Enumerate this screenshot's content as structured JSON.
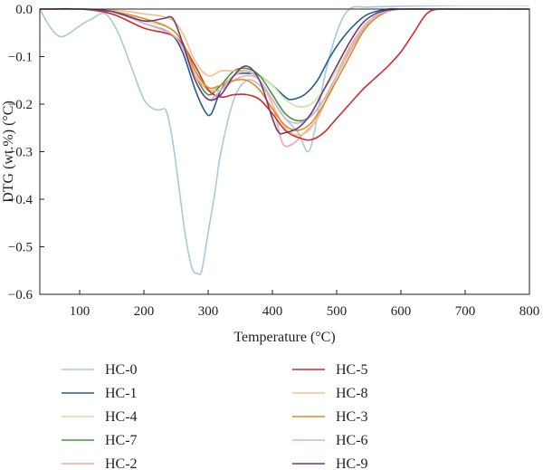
{
  "chart_data": {
    "type": "line",
    "xlabel": "Temperature (°C)",
    "ylabel": "DTG (wt.%) (°C)",
    "xlim": [
      38,
      800
    ],
    "ylim": [
      -0.6,
      0.0
    ],
    "xticks": [
      100,
      200,
      300,
      400,
      500,
      600,
      700,
      800
    ],
    "yticks": [
      0.0,
      -0.1,
      -0.2,
      -0.3,
      -0.4,
      -0.5,
      -0.6
    ],
    "ytick_labels": [
      "0.0",
      "−0.1",
      "−0.2",
      "−0.3",
      "−0.4",
      "−0.5",
      "−0.6"
    ],
    "grid": false,
    "legend_position": "bottom, two columns",
    "series": [
      {
        "name": "HC-0",
        "color": "#a8c8e0",
        "x": [
          38,
          55,
          70,
          85,
          100,
          120,
          140,
          160,
          180,
          200,
          215,
          225,
          235,
          245,
          255,
          265,
          275,
          283,
          290,
          300,
          310,
          320,
          340,
          360,
          380,
          400,
          420,
          440,
          455,
          465,
          480,
          500,
          520,
          550,
          600,
          650,
          700,
          800
        ],
        "y": [
          0,
          -0.04,
          -0.058,
          -0.05,
          -0.035,
          -0.02,
          -0.01,
          -0.05,
          -0.12,
          -0.19,
          -0.21,
          -0.212,
          -0.215,
          -0.28,
          -0.38,
          -0.48,
          -0.545,
          -0.556,
          -0.55,
          -0.47,
          -0.39,
          -0.3,
          -0.19,
          -0.15,
          -0.16,
          -0.19,
          -0.23,
          -0.26,
          -0.3,
          -0.26,
          -0.15,
          -0.05,
          0,
          0.004,
          0.006,
          0.007,
          0.008,
          0.008
        ]
      },
      {
        "name": "HC-1",
        "color": "#1f5f8f",
        "x": [
          38,
          100,
          150,
          200,
          240,
          260,
          280,
          295,
          305,
          320,
          340,
          360,
          380,
          400,
          420,
          430,
          450,
          470,
          490,
          510,
          530,
          550,
          580,
          600,
          650,
          700,
          800
        ],
        "y": [
          0,
          0,
          -0.005,
          -0.03,
          -0.05,
          -0.09,
          -0.17,
          -0.215,
          -0.22,
          -0.17,
          -0.14,
          -0.135,
          -0.14,
          -0.16,
          -0.185,
          -0.19,
          -0.18,
          -0.15,
          -0.1,
          -0.06,
          -0.03,
          -0.01,
          0,
          0,
          0,
          0,
          0
        ]
      },
      {
        "name": "HC-4",
        "color": "#c8e6a0",
        "x": [
          38,
          100,
          150,
          200,
          240,
          260,
          280,
          300,
          320,
          340,
          360,
          380,
          400,
          420,
          440,
          460,
          480,
          500,
          520,
          540,
          560,
          580,
          600,
          650,
          700,
          800
        ],
        "y": [
          0,
          0,
          -0.005,
          -0.025,
          -0.04,
          -0.07,
          -0.13,
          -0.17,
          -0.16,
          -0.14,
          -0.13,
          -0.14,
          -0.16,
          -0.19,
          -0.205,
          -0.2,
          -0.17,
          -0.13,
          -0.08,
          -0.04,
          -0.015,
          -0.005,
          0,
          0,
          0,
          0
        ]
      },
      {
        "name": "HC-7",
        "color": "#3a9a3a",
        "x": [
          38,
          100,
          150,
          200,
          240,
          260,
          280,
          300,
          320,
          340,
          360,
          380,
          400,
          420,
          440,
          460,
          480,
          500,
          520,
          540,
          560,
          580,
          600,
          650,
          700,
          800
        ],
        "y": [
          0,
          0,
          -0.005,
          -0.03,
          -0.05,
          -0.08,
          -0.14,
          -0.18,
          -0.16,
          -0.13,
          -0.125,
          -0.14,
          -0.18,
          -0.22,
          -0.235,
          -0.225,
          -0.19,
          -0.14,
          -0.09,
          -0.045,
          -0.015,
          -0.005,
          0,
          0,
          0,
          0
        ]
      },
      {
        "name": "HC-2",
        "color": "#f4a6a0",
        "x": [
          38,
          100,
          150,
          200,
          240,
          260,
          280,
          300,
          320,
          340,
          360,
          380,
          400,
          415,
          430,
          450,
          470,
          490,
          510,
          530,
          550,
          580,
          600,
          650,
          700,
          800
        ],
        "y": [
          0,
          0,
          -0.005,
          -0.03,
          -0.05,
          -0.08,
          -0.14,
          -0.17,
          -0.17,
          -0.15,
          -0.14,
          -0.15,
          -0.2,
          -0.28,
          -0.285,
          -0.26,
          -0.23,
          -0.17,
          -0.11,
          -0.06,
          -0.025,
          -0.005,
          0,
          0,
          0,
          0
        ]
      },
      {
        "name": "HC-5",
        "color": "#d42a2a",
        "x": [
          38,
          100,
          150,
          200,
          250,
          280,
          300,
          320,
          340,
          360,
          380,
          400,
          420,
          440,
          460,
          480,
          500,
          520,
          540,
          560,
          580,
          600,
          620,
          640,
          660,
          700,
          800
        ],
        "y": [
          0,
          0,
          -0.01,
          -0.04,
          -0.06,
          -0.12,
          -0.17,
          -0.185,
          -0.18,
          -0.18,
          -0.19,
          -0.22,
          -0.255,
          -0.27,
          -0.275,
          -0.26,
          -0.23,
          -0.2,
          -0.17,
          -0.145,
          -0.12,
          -0.09,
          -0.05,
          -0.01,
          0,
          0,
          0
        ]
      },
      {
        "name": "HC-8",
        "color": "#f5c088",
        "x": [
          38,
          100,
          150,
          200,
          240,
          260,
          280,
          300,
          320,
          340,
          360,
          380,
          400,
          420,
          440,
          460,
          480,
          500,
          520,
          540,
          560,
          580,
          600,
          650,
          700,
          800
        ],
        "y": [
          0,
          0,
          -0.002,
          -0.01,
          -0.02,
          -0.05,
          -0.11,
          -0.14,
          -0.13,
          -0.13,
          -0.13,
          -0.15,
          -0.2,
          -0.25,
          -0.265,
          -0.25,
          -0.2,
          -0.14,
          -0.08,
          -0.04,
          -0.015,
          -0.005,
          0,
          0,
          0,
          0
        ]
      },
      {
        "name": "HC-3",
        "color": "#e08a1e",
        "x": [
          38,
          100,
          150,
          200,
          240,
          260,
          280,
          300,
          320,
          340,
          360,
          380,
          400,
          420,
          440,
          460,
          480,
          500,
          520,
          540,
          560,
          580,
          600,
          650,
          700,
          800
        ],
        "y": [
          0,
          0,
          -0.005,
          -0.02,
          -0.04,
          -0.07,
          -0.13,
          -0.165,
          -0.16,
          -0.15,
          -0.15,
          -0.17,
          -0.21,
          -0.245,
          -0.255,
          -0.24,
          -0.2,
          -0.15,
          -0.1,
          -0.05,
          -0.02,
          -0.005,
          0,
          0,
          0,
          0
        ]
      },
      {
        "name": "HC-6",
        "color": "#d8b0d8",
        "x": [
          38,
          100,
          150,
          200,
          240,
          260,
          280,
          300,
          320,
          340,
          360,
          380,
          400,
          420,
          440,
          460,
          480,
          500,
          520,
          540,
          560,
          580,
          600,
          650,
          700,
          800
        ],
        "y": [
          0,
          0,
          -0.005,
          -0.03,
          -0.05,
          -0.08,
          -0.15,
          -0.19,
          -0.17,
          -0.14,
          -0.13,
          -0.15,
          -0.19,
          -0.23,
          -0.24,
          -0.225,
          -0.19,
          -0.14,
          -0.09,
          -0.045,
          -0.015,
          -0.005,
          0,
          0,
          0,
          0
        ]
      },
      {
        "name": "HC-9",
        "color": "#6a3a7a",
        "x": [
          38,
          100,
          150,
          200,
          230,
          245,
          260,
          280,
          300,
          320,
          340,
          360,
          380,
          400,
          410,
          420,
          440,
          460,
          480,
          500,
          520,
          540,
          560,
          580,
          600,
          650,
          700,
          800
        ],
        "y": [
          0,
          0,
          -0.005,
          -0.025,
          -0.02,
          -0.02,
          -0.07,
          -0.15,
          -0.19,
          -0.18,
          -0.14,
          -0.12,
          -0.15,
          -0.23,
          -0.26,
          -0.26,
          -0.25,
          -0.22,
          -0.17,
          -0.12,
          -0.07,
          -0.03,
          -0.01,
          -0.002,
          0,
          0,
          0,
          0
        ]
      }
    ]
  }
}
